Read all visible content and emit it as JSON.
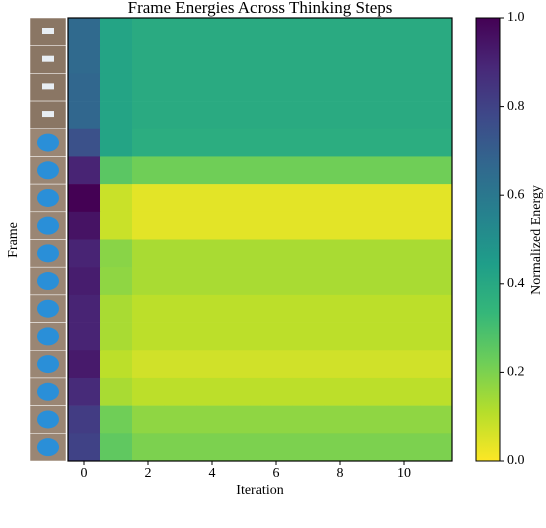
{
  "chart_data": {
    "type": "heatmap",
    "title": "Frame Energies Across Thinking Steps",
    "xlabel": "Iteration",
    "ylabel": "Frame",
    "colorbar_label": "Normalized Energy",
    "xlim": [
      -0.5,
      11.5
    ],
    "xticks": [
      0,
      2,
      4,
      6,
      8,
      10
    ],
    "clim": [
      0,
      1
    ],
    "cticks": [
      {
        "value": 0,
        "label": "0.0"
      },
      {
        "value": 0.2,
        "label": "0.2"
      },
      {
        "value": 0.4,
        "label": "0.4"
      },
      {
        "value": 0.6,
        "label": "0.6"
      },
      {
        "value": 0.8,
        "label": "0.8"
      },
      {
        "value": 1,
        "label": "1.0"
      }
    ],
    "colormap": [
      "#fde725",
      "#b5de2b",
      "#6ece58",
      "#35b779",
      "#1f9e89",
      "#26828e",
      "#31688e",
      "#3e4989",
      "#482878",
      "#440154"
    ],
    "z": [
      [
        0.66,
        0.42,
        0.39,
        0.39,
        0.39,
        0.39,
        0.39,
        0.39,
        0.39,
        0.39,
        0.39,
        0.39
      ],
      [
        0.66,
        0.42,
        0.39,
        0.39,
        0.39,
        0.39,
        0.39,
        0.39,
        0.39,
        0.39,
        0.39,
        0.39
      ],
      [
        0.67,
        0.42,
        0.39,
        0.39,
        0.39,
        0.39,
        0.39,
        0.39,
        0.39,
        0.39,
        0.39,
        0.39
      ],
      [
        0.67,
        0.42,
        0.39,
        0.39,
        0.39,
        0.39,
        0.39,
        0.39,
        0.39,
        0.39,
        0.39,
        0.39
      ],
      [
        0.75,
        0.42,
        0.38,
        0.38,
        0.38,
        0.38,
        0.38,
        0.38,
        0.38,
        0.38,
        0.38,
        0.38
      ],
      [
        0.9,
        0.26,
        0.22,
        0.22,
        0.22,
        0.22,
        0.22,
        0.22,
        0.22,
        0.22,
        0.22,
        0.22
      ],
      [
        1.0,
        0.08,
        0.04,
        0.04,
        0.04,
        0.04,
        0.04,
        0.04,
        0.04,
        0.04,
        0.04,
        0.04
      ],
      [
        0.95,
        0.08,
        0.04,
        0.04,
        0.04,
        0.04,
        0.04,
        0.04,
        0.04,
        0.04,
        0.04,
        0.04
      ],
      [
        0.9,
        0.18,
        0.13,
        0.13,
        0.13,
        0.13,
        0.13,
        0.13,
        0.13,
        0.13,
        0.13,
        0.13
      ],
      [
        0.92,
        0.17,
        0.13,
        0.13,
        0.13,
        0.13,
        0.13,
        0.13,
        0.13,
        0.13,
        0.13,
        0.13
      ],
      [
        0.9,
        0.13,
        0.1,
        0.1,
        0.1,
        0.1,
        0.1,
        0.1,
        0.1,
        0.1,
        0.1,
        0.1
      ],
      [
        0.9,
        0.13,
        0.1,
        0.1,
        0.1,
        0.1,
        0.1,
        0.1,
        0.1,
        0.1,
        0.1,
        0.1
      ],
      [
        0.93,
        0.1,
        0.07,
        0.07,
        0.07,
        0.07,
        0.07,
        0.07,
        0.07,
        0.07,
        0.07,
        0.07
      ],
      [
        0.88,
        0.13,
        0.1,
        0.1,
        0.1,
        0.1,
        0.1,
        0.1,
        0.1,
        0.1,
        0.1,
        0.1
      ],
      [
        0.82,
        0.22,
        0.17,
        0.17,
        0.17,
        0.17,
        0.17,
        0.17,
        0.17,
        0.17,
        0.17,
        0.17
      ],
      [
        0.8,
        0.25,
        0.2,
        0.2,
        0.2,
        0.2,
        0.2,
        0.2,
        0.2,
        0.2,
        0.2,
        0.2
      ]
    ]
  }
}
